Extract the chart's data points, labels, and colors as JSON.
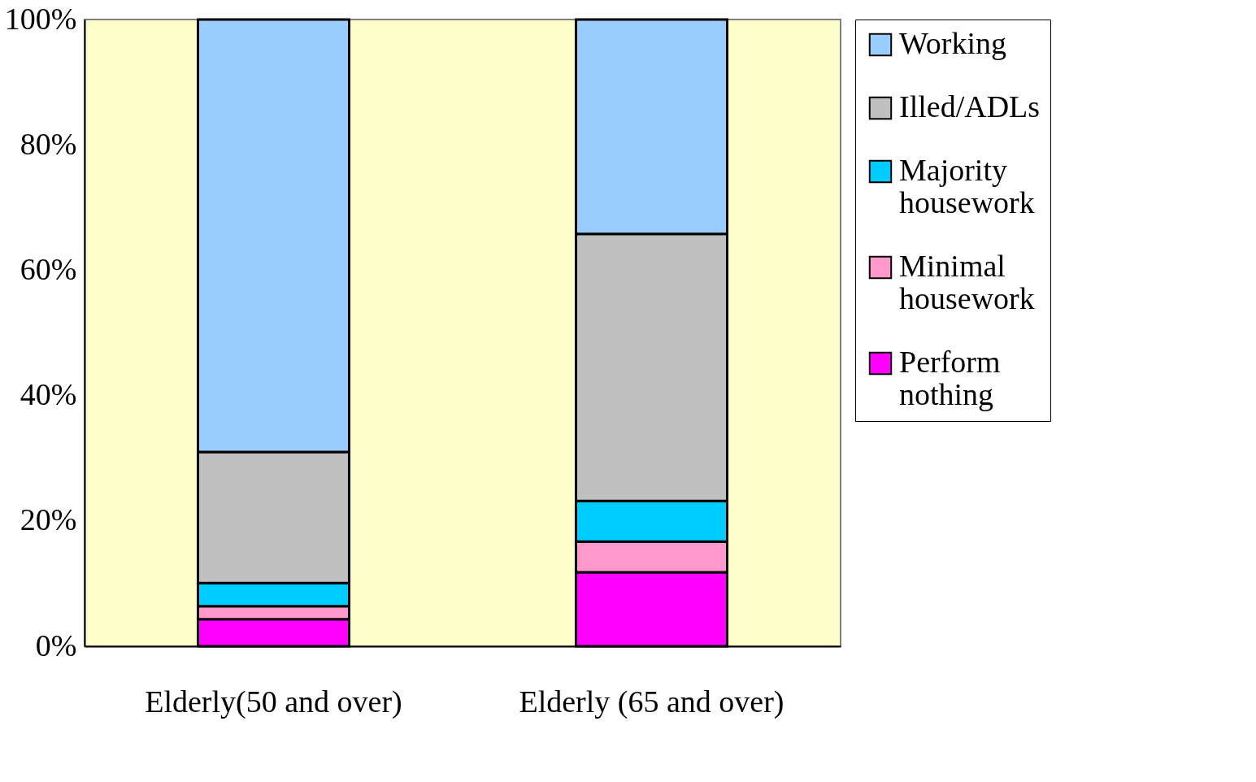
{
  "chart_data": {
    "type": "bar",
    "stacked": true,
    "categories": [
      "Elderly(50 and over)",
      "Elderly (65 and over)"
    ],
    "series": [
      {
        "name": "Perform nothing",
        "color": "#ff00ff",
        "values": [
          4.3,
          11.8
        ]
      },
      {
        "name": "Minimal housework",
        "color": "#ff99cc",
        "values": [
          2.1,
          4.9
        ]
      },
      {
        "name": "Majority housework",
        "color": "#00ccff",
        "values": [
          3.7,
          6.5
        ]
      },
      {
        "name": "Illed/ADLs",
        "color": "#c0c0c0",
        "values": [
          20.9,
          42.6
        ]
      },
      {
        "name": "Working",
        "color": "#99ccff",
        "values": [
          69.0,
          34.2
        ]
      }
    ],
    "ylim": [
      0,
      100
    ],
    "yticks": [
      {
        "value": 0,
        "label": "0%"
      },
      {
        "value": 20,
        "label": "20%"
      },
      {
        "value": 40,
        "label": "40%"
      },
      {
        "value": 60,
        "label": "60%"
      },
      {
        "value": 80,
        "label": "80%"
      },
      {
        "value": 100,
        "label": "100%"
      }
    ],
    "grid": false,
    "legend": "right"
  }
}
